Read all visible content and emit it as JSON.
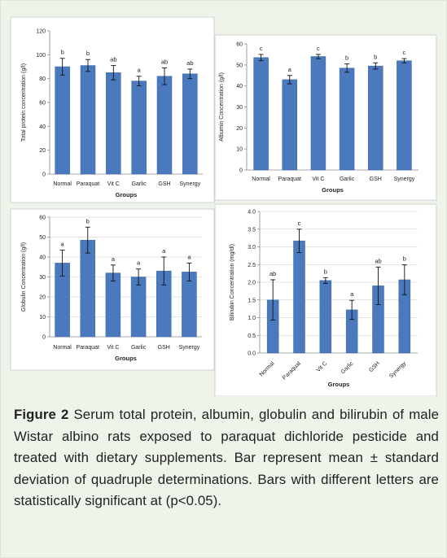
{
  "figure": {
    "label": "Figure 2",
    "text": "Serum total protein, albumin, globulin and bilirubin of male Wistar albino rats exposed to paraquat dichloride pesticide and treated with dietary supplements. Bar represent mean ± standard deviation of quadruple determinations. Bars with different letters are statistically significant at (p<0.05)."
  },
  "colors": {
    "bar": "#4a79be",
    "bar_edge": "#3a66a6",
    "grid": "#c9c9c9",
    "axis": "#8a8a8a",
    "letter_light": "#4b6e9e"
  },
  "chart_data": [
    {
      "type": "bar",
      "title": "",
      "xlabel": "Groups",
      "ylabel": "Total protein concentration (g/l)",
      "categories": [
        "Normal",
        "Paraquat",
        "Vit C",
        "Garlic",
        "GSH",
        "Synergy"
      ],
      "values": [
        90,
        91,
        85,
        78,
        82,
        84
      ],
      "errors": [
        7,
        5,
        6,
        4,
        7,
        4
      ],
      "letters": [
        "b",
        "b",
        "ab",
        "a",
        "ab",
        "ab"
      ],
      "ylim": [
        0,
        120
      ],
      "yticks": [
        "0",
        "20",
        "40",
        "60",
        "80",
        "100",
        "120"
      ],
      "grid": false,
      "rotated_xlabels": false
    },
    {
      "type": "bar",
      "title": "",
      "xlabel": "Groups",
      "ylabel": "Albumin Concentration (g/l)",
      "categories": [
        "Normal",
        "Paraquat",
        "Vit C",
        "Garlic",
        "GSH",
        "Synergy"
      ],
      "values": [
        53.5,
        43,
        54,
        48.5,
        49.5,
        52
      ],
      "errors": [
        1.5,
        2,
        1,
        2,
        1.5,
        1
      ],
      "letters": [
        "c",
        "a",
        "c",
        "b",
        "b",
        "c"
      ],
      "ylim": [
        0,
        60
      ],
      "yticks": [
        "0",
        "10",
        "20",
        "30",
        "40",
        "50",
        "60"
      ],
      "grid": false,
      "rotated_xlabels": false
    },
    {
      "type": "bar",
      "title": "",
      "xlabel": "Groups",
      "ylabel": "Globulin Concentration (g/l)",
      "categories": [
        "Normal",
        "Paraquat",
        "Vit C",
        "Garlic",
        "GSH",
        "Synergy"
      ],
      "values": [
        37,
        48.5,
        32,
        30,
        33,
        32.5
      ],
      "errors": [
        6.5,
        6.5,
        4,
        4,
        7,
        4.5
      ],
      "letters": [
        "a",
        "b",
        "a",
        "a",
        "a",
        "a"
      ],
      "ylim": [
        0,
        60
      ],
      "yticks": [
        "0",
        "10",
        "20",
        "30",
        "40",
        "50",
        "60"
      ],
      "grid": true,
      "rotated_xlabels": false
    },
    {
      "type": "bar",
      "title": "",
      "xlabel": "Groups",
      "ylabel": "Bilirubin Concentration (mg/dl)",
      "categories": [
        "Normal",
        "Paraquat",
        "Vit C",
        "Garlic",
        "GSH",
        "Synergy"
      ],
      "values": [
        1.5,
        3.17,
        2.05,
        1.22,
        1.9,
        2.07
      ],
      "errors": [
        0.57,
        0.33,
        0.08,
        0.27,
        0.53,
        0.42
      ],
      "letters": [
        "ab",
        "c",
        "b",
        "a",
        "ab",
        "b"
      ],
      "ylim": [
        0,
        4
      ],
      "yticks": [
        "0.0",
        "0.5",
        "1.0",
        "1.5",
        "2.0",
        "2.5",
        "3.0",
        "3.5",
        "4.0"
      ],
      "grid": true,
      "rotated_xlabels": true
    }
  ]
}
